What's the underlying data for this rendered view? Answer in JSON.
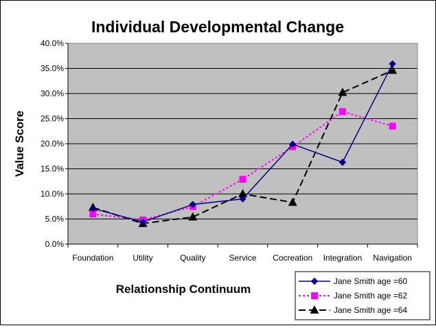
{
  "chart_data": {
    "type": "line",
    "title": "Individual Developmental Change",
    "xlabel": "Relationship Continuum",
    "ylabel": "Value Score",
    "categories": [
      "Foundation",
      "Utility",
      "Quality",
      "Service",
      "Cocreation",
      "Integration",
      "Navigation"
    ],
    "ylim": [
      0,
      40
    ],
    "yticks": [
      "0.0%",
      "5.0%",
      "10.0%",
      "15.0%",
      "20.0%",
      "25.0%",
      "30.0%",
      "35.0%",
      "40.0%"
    ],
    "grid": true,
    "legend_position": "bottom-right",
    "plot_background": "#c0c0c0",
    "series": [
      {
        "name": "Jane Smith age =60",
        "values": [
          7.1,
          4.4,
          7.9,
          9.0,
          19.9,
          16.3,
          35.9
        ],
        "color": "#000080",
        "line": "solid",
        "marker": "diamond"
      },
      {
        "name": "Jane Smith age =62",
        "values": [
          6.0,
          4.8,
          7.5,
          12.9,
          19.4,
          26.4,
          23.5
        ],
        "color": "#ff00ff",
        "line": "dotted",
        "marker": "square"
      },
      {
        "name": "Jane Smith age =64",
        "values": [
          7.3,
          4.1,
          5.4,
          10.0,
          8.3,
          30.2,
          34.6
        ],
        "color": "#000000",
        "line": "dashed",
        "marker": "triangle"
      }
    ]
  }
}
